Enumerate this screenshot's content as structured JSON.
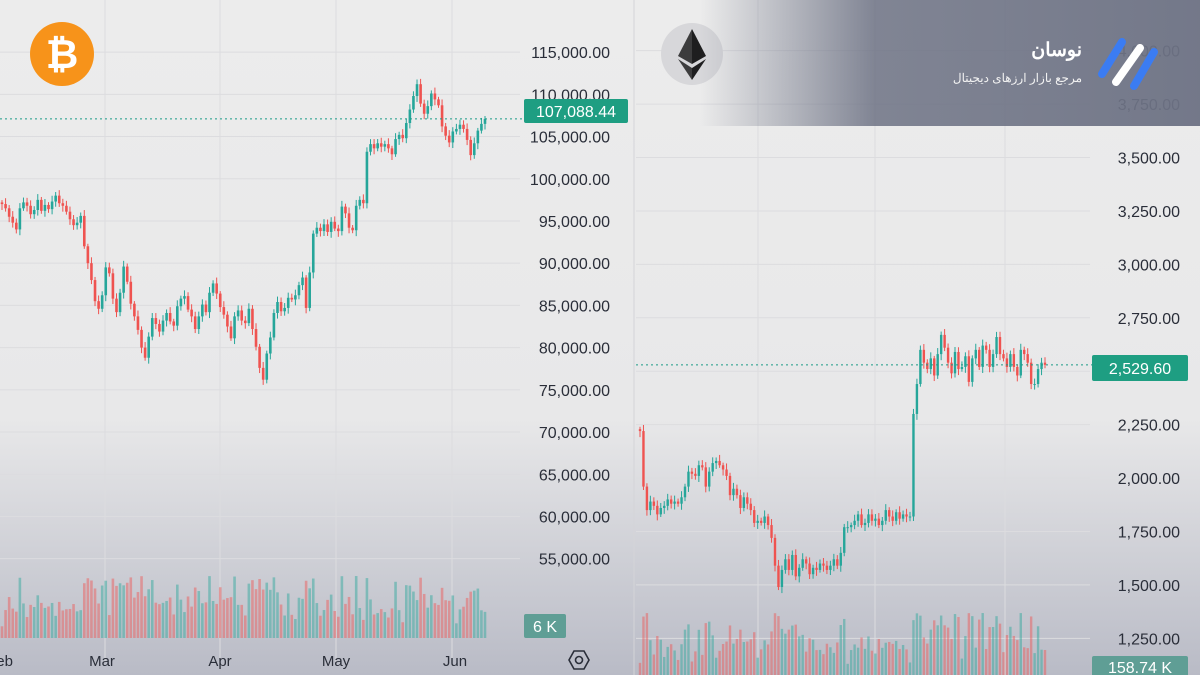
{
  "brand": {
    "name": "نوسان",
    "tagline": "مرجع بازار ارزهای دیجیتال"
  },
  "colors": {
    "up": "#26a69a",
    "down": "#ef5350",
    "bitcoin": "#f7931a"
  },
  "icons": {
    "left_logo": "bitcoin-icon",
    "right_logo": "ethereum-icon",
    "settings": "settings-hexagon-icon",
    "brand": "nousan-logo-icon"
  },
  "chart_data": [
    {
      "type": "candlestick",
      "symbol": "BTC",
      "title": "",
      "xlabel": "",
      "ylabel": "",
      "ylim": [
        47500,
        117500
      ],
      "y_ticks": [
        "115,000.00",
        "110,000.00",
        "105,000.00",
        "100,000.00",
        "95,000.00",
        "90,000.00",
        "85,000.00",
        "80,000.00",
        "75,000.00",
        "70,000.00",
        "65,000.00",
        "60,000.00",
        "55,000.00"
      ],
      "x_ticks": [
        "Feb",
        "Mar",
        "Apr",
        "May",
        "Jun"
      ],
      "last_price": 107088.44,
      "last_price_label": "107,088.44",
      "volume_label": "6 K",
      "grid": true,
      "close": [
        97000,
        96500,
        95500,
        94800,
        94000,
        96500,
        97200,
        96800,
        95800,
        96300,
        97500,
        96200,
        96900,
        96400,
        97300,
        98000,
        97100,
        96800,
        96100,
        95200,
        94500,
        94800,
        95600,
        92000,
        90000,
        88000,
        85500,
        84600,
        86200,
        89500,
        88800,
        85800,
        84200,
        86500,
        89600,
        87800,
        85200,
        83700,
        82100,
        80000,
        78800,
        81300,
        83500,
        82800,
        81900,
        83200,
        84100,
        83100,
        82600,
        84900,
        85800,
        86100,
        84500,
        83700,
        82200,
        83700,
        85100,
        84200,
        86500,
        87600,
        86400,
        84800,
        83900,
        82500,
        81100,
        83700,
        84400,
        83200,
        82900,
        84600,
        82200,
        80100,
        77600,
        76200,
        79300,
        81200,
        84100,
        85400,
        84300,
        84700,
        85900,
        85700,
        86200,
        87400,
        88300,
        84700,
        88900,
        93500,
        94200,
        93800,
        94600,
        93700,
        94900,
        94100,
        93800,
        96700,
        95900,
        94200,
        93900,
        96800,
        97500,
        97100,
        103200,
        104100,
        103600,
        104200,
        103800,
        104100,
        103600,
        102900,
        104700,
        105200,
        104800,
        106600,
        108200,
        109800,
        111200,
        108900,
        107700,
        108600,
        110100,
        109400,
        108700,
        106200,
        105100,
        104300,
        105600,
        105900,
        106400,
        105900,
        104600,
        102800,
        104200,
        105700,
        106500,
        107088
      ]
    },
    {
      "type": "candlestick",
      "symbol": "ETH",
      "title": "",
      "xlabel": "",
      "ylabel": "",
      "ylim": [
        1200,
        4050
      ],
      "y_ticks": [
        "4,000.00",
        "3,750.00",
        "3,500.00",
        "3,250.00",
        "3,000.00",
        "2,750.00",
        "2,500.00",
        "2,250.00",
        "2,000.00",
        "1,750.00",
        "1,500.00",
        "1,250.00"
      ],
      "x_ticks": [],
      "last_price": 2529.6,
      "last_price_label": "2,529.60",
      "volume_label": "158.74 K",
      "grid": true,
      "close": [
        2220,
        1960,
        1850,
        1890,
        1870,
        1830,
        1860,
        1870,
        1900,
        1880,
        1890,
        1880,
        1910,
        1960,
        2030,
        2020,
        2010,
        2060,
        2050,
        1960,
        2030,
        2070,
        2080,
        2060,
        2040,
        2010,
        1920,
        1950,
        1920,
        1860,
        1910,
        1880,
        1850,
        1790,
        1800,
        1790,
        1820,
        1780,
        1720,
        1590,
        1490,
        1570,
        1620,
        1570,
        1640,
        1540,
        1580,
        1620,
        1600,
        1550,
        1580,
        1570,
        1600,
        1590,
        1570,
        1590,
        1620,
        1590,
        1650,
        1770,
        1770,
        1780,
        1800,
        1830,
        1780,
        1790,
        1830,
        1800,
        1810,
        1780,
        1800,
        1850,
        1820,
        1800,
        1840,
        1810,
        1830,
        1820,
        1820,
        2300,
        2440,
        2600,
        2540,
        2510,
        2560,
        2480,
        2580,
        2670,
        2610,
        2540,
        2490,
        2590,
        2510,
        2520,
        2570,
        2450,
        2560,
        2600,
        2520,
        2620,
        2600,
        2520,
        2580,
        2660,
        2580,
        2560,
        2520,
        2580,
        2520,
        2480,
        2600,
        2580,
        2540,
        2440,
        2440,
        2510,
        2540,
        2530
      ]
    }
  ]
}
